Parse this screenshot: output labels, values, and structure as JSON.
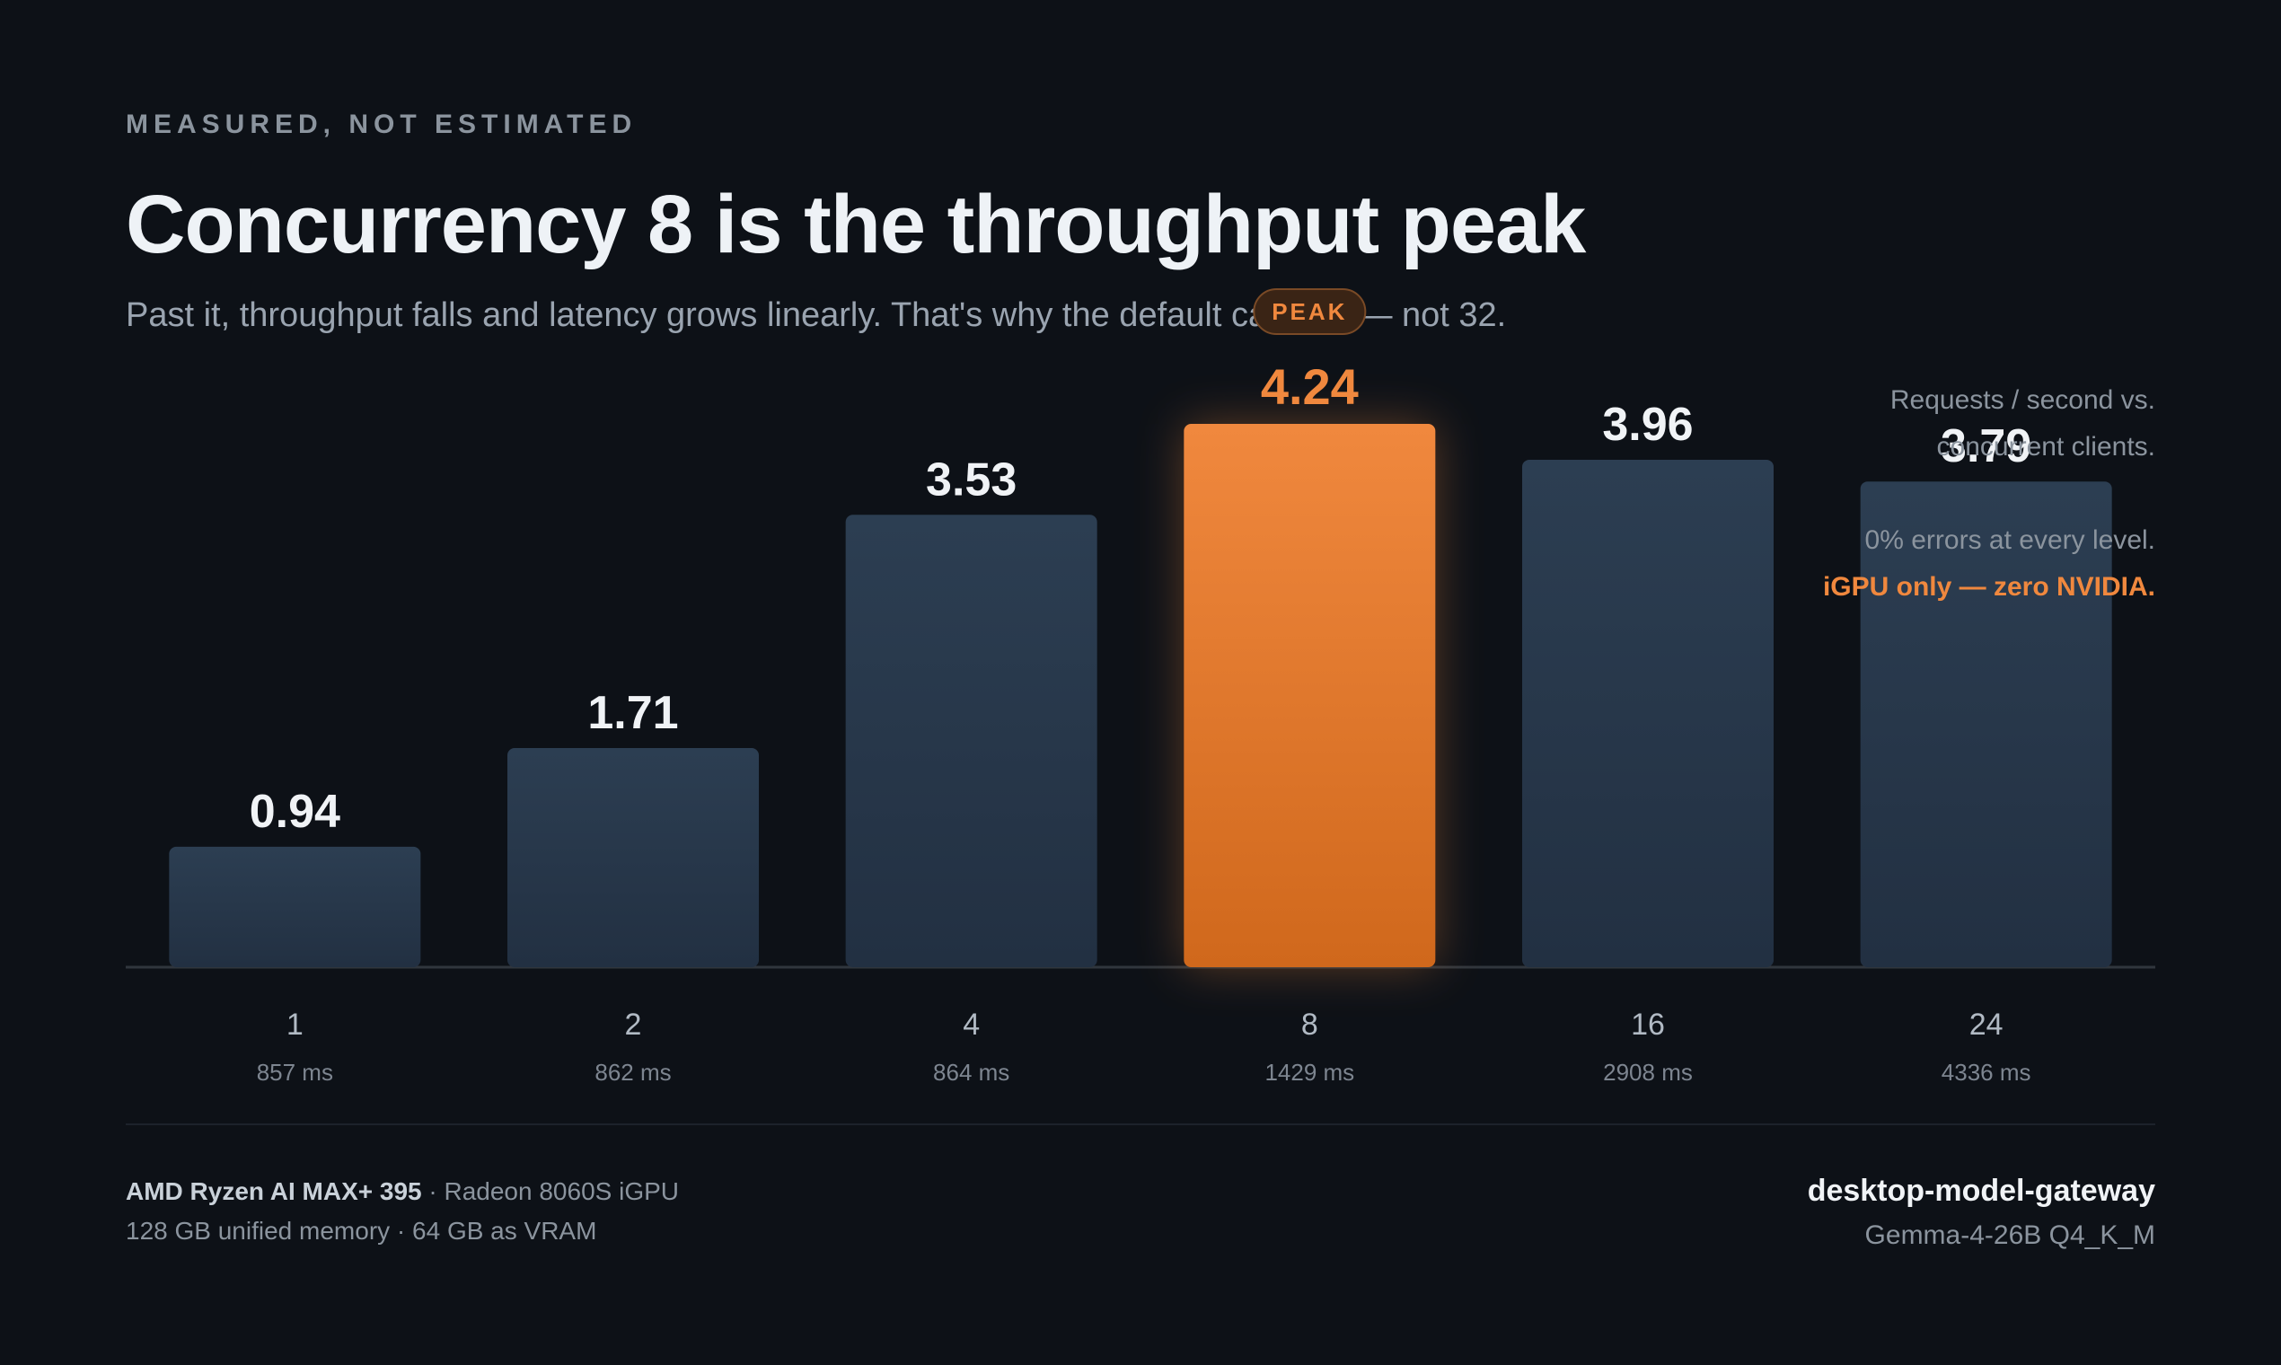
{
  "eyebrow": "MEASURED, NOT ESTIMATED",
  "title": "Concurrency 8 is the throughput peak",
  "subtitle": "Past it, throughput falls and latency grows linearly. That's why the default cap is 8 — not 32.",
  "side_note": {
    "line1": "Requests / second vs.",
    "line2": "concurrent clients.",
    "line3": "0% errors at every level.",
    "line4": "iGPU only — zero NVIDIA."
  },
  "footer": {
    "cpu": "AMD Ryzen AI MAX+ 395",
    "gpu": " · Radeon 8060S iGPU",
    "memory": "128 GB unified memory · 64 GB as VRAM",
    "product": "desktop-model-gateway",
    "model": "Gemma-4-26B Q4_K_M"
  },
  "colors": {
    "bar": "#2c3e52",
    "bar_bottom": "#223042",
    "peak": "#f0883e",
    "peak_bottom": "#d0681c",
    "peak_label": "#f0883e",
    "value_label": "#f0f3f6",
    "tick": "#b1bac4",
    "latency": "#7d8590",
    "baseline": "#30363d"
  },
  "chart_data": {
    "type": "bar",
    "categories": [
      "1",
      "2",
      "4",
      "8",
      "16",
      "24"
    ],
    "values": [
      0.94,
      1.71,
      3.53,
      4.24,
      3.96,
      3.79
    ],
    "value_labels": [
      "0.94",
      "1.71",
      "3.53",
      "4.24",
      "3.96",
      "3.79"
    ],
    "latency_labels": [
      "857 ms",
      "862 ms",
      "864 ms",
      "1429 ms",
      "2908 ms",
      "4336 ms"
    ],
    "highlight_index": 3,
    "highlight_badge": "PEAK",
    "ylim": [
      0,
      4.24
    ],
    "grid": false,
    "legend": "none"
  }
}
